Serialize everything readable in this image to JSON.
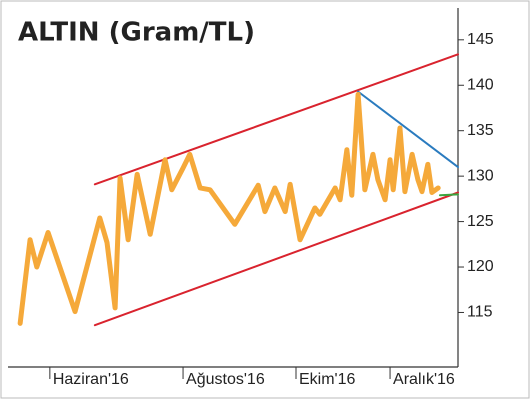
{
  "chart_data": {
    "type": "line",
    "title": "ALTIN (Gram/TL)",
    "xlim": [
      0,
      100
    ],
    "ylim": [
      109,
      148.5
    ],
    "yticks": [
      115,
      120,
      125,
      130,
      135,
      140,
      145
    ],
    "xticks": [
      {
        "value": 9.3,
        "label": "Haziran'16"
      },
      {
        "value": 38.9,
        "label": "Ağustos'16"
      },
      {
        "value": 64,
        "label": "Ekim'16"
      },
      {
        "value": 84.9,
        "label": "Aralık'16"
      }
    ],
    "series": [
      {
        "color": "#d9232e",
        "x": [
          19.3,
          100
        ],
        "values": [
          129.1,
          143.4
        ]
      },
      {
        "color": "#d9232e",
        "x": [
          19.3,
          100
        ],
        "values": [
          113.6,
          128.2
        ]
      },
      {
        "color": "#2a7bbf",
        "x": [
          77.8,
          100
        ],
        "values": [
          139.3,
          131.0
        ]
      },
      {
        "color": "#3aa640",
        "x": [
          96,
          100
        ],
        "values": [
          127.9,
          128.0
        ]
      },
      {
        "color": "#f5a93a",
        "x": [
          2.7,
          4.9,
          6.4,
          8.9,
          14.9,
          20.4,
          22,
          23.8,
          24.9,
          26.7,
          28.7,
          31.6,
          34.9,
          36.4,
          38.9,
          40.4,
          42.7,
          44.9,
          50.4,
          55.6,
          57.1,
          59.3,
          61.6,
          62.7,
          64.9,
          68.2,
          69.3,
          72.7,
          73.8,
          75.3,
          76.4,
          77.8,
          79.3,
          81.1,
          82.2,
          83.8,
          84.9,
          85.6,
          87.1,
          88.2,
          89.8,
          91.1,
          92,
          93.3,
          94.2,
          95.6
        ],
        "values": [
          113.8,
          123.0,
          120,
          123.8,
          115.1,
          125.4,
          122.7,
          115.5,
          129.8,
          123,
          130.2,
          123.6,
          131.8,
          128.5,
          130.9,
          132.4,
          128.7,
          128.5,
          124.7,
          129,
          126.1,
          128.7,
          126.1,
          129.1,
          123,
          126.5,
          125.8,
          128.7,
          127.4,
          132.9,
          127.9,
          139,
          128.5,
          132.4,
          129.6,
          127.4,
          131.8,
          128.5,
          135.3,
          128.3,
          132.4,
          129.6,
          128.3,
          131.3,
          128.2,
          128.7
        ]
      }
    ]
  }
}
